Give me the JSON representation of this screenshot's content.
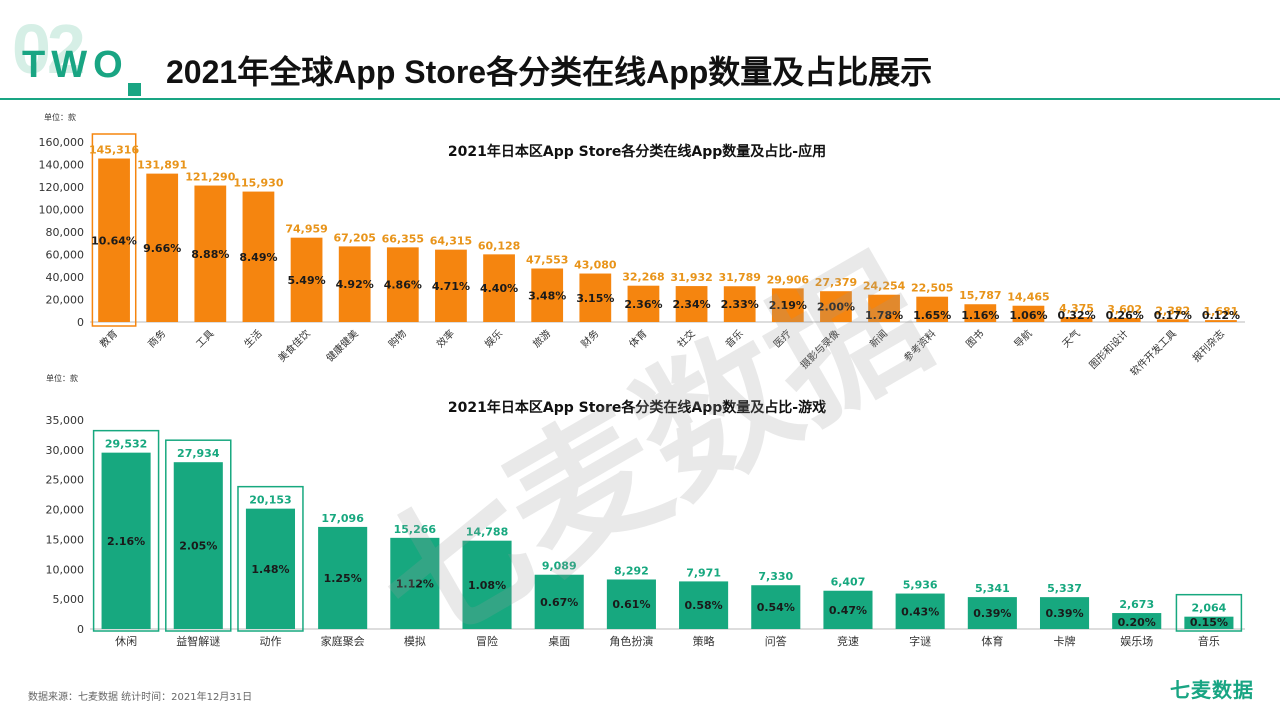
{
  "header": {
    "number": "02",
    "label": "TWO",
    "title": "2021年全球App Store各分类在线App数量及占比展示"
  },
  "footer": {
    "source": "数据来源：七麦数据 统计时间：2021年12月31日",
    "brand": "七麦数据"
  },
  "watermark": "七麦数据",
  "colors": {
    "accent": "#19a583",
    "apps_bar": "#f5850f",
    "games_bar": "#17a87f",
    "apps_value": "#e8941a"
  },
  "chart_data": [
    {
      "type": "bar",
      "title": "2021年日本区App Store各分类在线App数量及占比-应用",
      "unit_label": "单位：款",
      "ylim": [
        0,
        160000
      ],
      "yticks": [
        0,
        20000,
        40000,
        60000,
        80000,
        100000,
        120000,
        140000,
        160000
      ],
      "ytick_labels": [
        "0",
        "20,000",
        "40,000",
        "60,000",
        "80,000",
        "100,000",
        "120,000",
        "140,000",
        "160,000"
      ],
      "categories": [
        "教育",
        "商务",
        "工具",
        "生活",
        "美食佳饮",
        "健康健美",
        "购物",
        "效率",
        "娱乐",
        "旅游",
        "财务",
        "体育",
        "社交",
        "音乐",
        "医疗",
        "摄影与录像",
        "新闻",
        "参考资料",
        "图书",
        "导航",
        "天气",
        "图形和设计",
        "软件开发工具",
        "报刊杂志"
      ],
      "values": [
        145316,
        131891,
        121290,
        115930,
        74959,
        67205,
        66355,
        64315,
        60128,
        47553,
        43080,
        32268,
        31932,
        31789,
        29906,
        27379,
        24254,
        22505,
        15787,
        14465,
        4375,
        3602,
        2382,
        1681
      ],
      "value_labels": [
        "145,316",
        "131,891",
        "121,290",
        "115,930",
        "74,959",
        "67,205",
        "66,355",
        "64,315",
        "60,128",
        "47,553",
        "43,080",
        "32,268",
        "31,932",
        "31,789",
        "29,906",
        "27,379",
        "24,254",
        "22,505",
        "15,787",
        "14,465",
        "4,375",
        "3,602",
        "2,382",
        "1,681"
      ],
      "share_labels": [
        "10.64%",
        "9.66%",
        "8.88%",
        "8.49%",
        "5.49%",
        "4.92%",
        "4.86%",
        "4.71%",
        "4.40%",
        "3.48%",
        "3.15%",
        "2.36%",
        "2.34%",
        "2.33%",
        "2.19%",
        "2.00%",
        "1.78%",
        "1.65%",
        "1.16%",
        "1.06%",
        "0.32%",
        "0.26%",
        "0.17%",
        "0.12%"
      ],
      "highlighted": [
        0
      ]
    },
    {
      "type": "bar",
      "title": "2021年日本区App Store各分类在线App数量及占比-游戏",
      "unit_label": "单位：款",
      "ylim": [
        0,
        35000
      ],
      "yticks": [
        0,
        5000,
        10000,
        15000,
        20000,
        25000,
        30000,
        35000
      ],
      "ytick_labels": [
        "0",
        "5,000",
        "10,000",
        "15,000",
        "20,000",
        "25,000",
        "30,000",
        "35,000"
      ],
      "categories": [
        "休闲",
        "益智解谜",
        "动作",
        "家庭聚会",
        "模拟",
        "冒险",
        "桌面",
        "角色扮演",
        "策略",
        "问答",
        "竞速",
        "字谜",
        "体育",
        "卡牌",
        "娱乐场",
        "音乐"
      ],
      "values": [
        29532,
        27934,
        20153,
        17096,
        15266,
        14788,
        9089,
        8292,
        7971,
        7330,
        6407,
        5936,
        5341,
        5337,
        2673,
        2064
      ],
      "value_labels": [
        "29,532",
        "27,934",
        "20,153",
        "17,096",
        "15,266",
        "14,788",
        "9,089",
        "8,292",
        "7,971",
        "7,330",
        "6,407",
        "5,936",
        "5,341",
        "5,337",
        "2,673",
        "2,064"
      ],
      "share_labels": [
        "2.16%",
        "2.05%",
        "1.48%",
        "1.25%",
        "1.12%",
        "1.08%",
        "0.67%",
        "0.61%",
        "0.58%",
        "0.54%",
        "0.47%",
        "0.43%",
        "0.39%",
        "0.39%",
        "0.20%",
        "0.15%"
      ],
      "highlighted": [
        0,
        1,
        2,
        15
      ]
    }
  ]
}
